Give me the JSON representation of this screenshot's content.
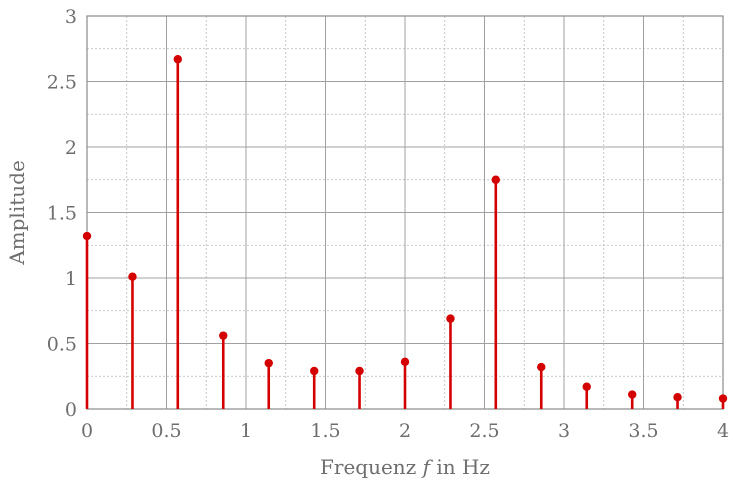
{
  "chart_data": {
    "type": "stem",
    "title": "",
    "xlabel_parts": [
      "Frequenz ",
      "f",
      " in Hz"
    ],
    "ylabel": "Amplitude",
    "xlim": [
      0,
      4
    ],
    "ylim": [
      0,
      3
    ],
    "x_ticks": [
      0,
      0.5,
      1,
      1.5,
      2,
      2.5,
      3,
      3.5,
      4
    ],
    "x_tick_labels": [
      "0",
      "0.5",
      "1",
      "1.5",
      "2",
      "2.5",
      "3",
      "3.5",
      "4"
    ],
    "y_ticks": [
      0,
      0.5,
      1,
      1.5,
      2,
      2.5,
      3
    ],
    "y_tick_labels": [
      "0",
      "0.5",
      "1",
      "1.5",
      "2",
      "2.5",
      "3"
    ],
    "grid": true,
    "color": "#d40000",
    "x": [
      0,
      0.286,
      0.571,
      0.857,
      1.143,
      1.429,
      1.714,
      2.0,
      2.286,
      2.571,
      2.857,
      3.143,
      3.429,
      3.714,
      4.0
    ],
    "y": [
      1.32,
      1.01,
      2.67,
      0.56,
      0.35,
      0.29,
      0.29,
      0.36,
      0.69,
      1.75,
      0.32,
      0.17,
      0.11,
      0.09,
      0.08
    ]
  }
}
